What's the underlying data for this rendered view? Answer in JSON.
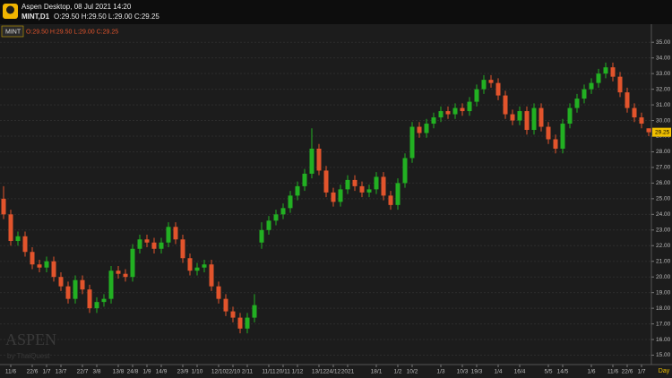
{
  "header": {
    "title": "Aspen Desktop, 08 Jul 2021 14:20",
    "symbol": "MINT,D1",
    "ohlc": "O:29.50 H:29.50 L:29.00 C:29.25"
  },
  "watermark": {
    "brand": "ASPEN",
    "by": "by ThaiQuest"
  },
  "chart_data": {
    "type": "candlestick",
    "legend_symbol": "MINT",
    "legend_ohlc": "O:29.50 H:29.50 L:29.00 C:29.25",
    "period": "Day",
    "up_color": "#22b022",
    "down_color": "#e2542c",
    "ylim": [
      14.4,
      36.1
    ],
    "yticks": [
      {
        "value": 15,
        "label": "15.00"
      },
      {
        "value": 16,
        "label": "16.00"
      },
      {
        "value": 17,
        "label": "17.00"
      },
      {
        "value": 18,
        "label": "18.00"
      },
      {
        "value": 19,
        "label": "19.00"
      },
      {
        "value": 20,
        "label": "20.00"
      },
      {
        "value": 21,
        "label": "21.00"
      },
      {
        "value": 22,
        "label": "22.00"
      },
      {
        "value": 23,
        "label": "23.00"
      },
      {
        "value": 24,
        "label": "24.00"
      },
      {
        "value": 25,
        "label": "25.00"
      },
      {
        "value": 26,
        "label": "26.00"
      },
      {
        "value": 27,
        "label": "27.00"
      },
      {
        "value": 28,
        "label": "28.00"
      },
      {
        "value": 29,
        "label": "29.00"
      },
      {
        "value": 30,
        "label": "30.00"
      },
      {
        "value": 31,
        "label": "31.00"
      },
      {
        "value": 32,
        "label": "32.00"
      },
      {
        "value": 33,
        "label": "33.00"
      },
      {
        "value": 34,
        "label": "34.00"
      },
      {
        "value": 35,
        "label": "35.00"
      }
    ],
    "grid": true,
    "current_price": {
      "value": 29.25,
      "label": "29.25"
    },
    "categories": [
      null,
      "11/6",
      null,
      null,
      "22/6",
      null,
      "1/7",
      null,
      "13/7",
      null,
      null,
      "22/7",
      null,
      "3/8",
      null,
      null,
      "13/8",
      null,
      "24/8",
      null,
      "1/9",
      null,
      "14/9",
      null,
      null,
      "23/9",
      null,
      "1/10",
      null,
      null,
      "12/10",
      null,
      "22/10",
      null,
      "2/11",
      null,
      null,
      "11/11",
      null,
      "20/11",
      null,
      "1/12",
      null,
      null,
      "13/12",
      null,
      "24/12",
      null,
      "2021",
      null,
      null,
      null,
      "18/1",
      null,
      null,
      "1/2",
      null,
      "10/2",
      null,
      null,
      null,
      "1/3",
      null,
      null,
      "10/3",
      null,
      "19/3",
      null,
      null,
      "1/4",
      null,
      null,
      "16/4",
      null,
      null,
      null,
      "5/5",
      null,
      "14/5",
      null,
      null,
      null,
      "1/6",
      null,
      null,
      "11/6",
      null,
      "22/6",
      null,
      "1/7",
      null
    ],
    "open": [
      25.0,
      24.0,
      22.3,
      22.6,
      21.6,
      20.8,
      20.6,
      21.0,
      20.0,
      19.4,
      18.6,
      19.8,
      19.2,
      18.0,
      18.4,
      18.6,
      20.4,
      20.2,
      20.0,
      21.8,
      22.4,
      22.2,
      21.8,
      22.2,
      23.2,
      22.4,
      21.2,
      20.4,
      20.6,
      20.8,
      19.4,
      18.6,
      17.8,
      17.4,
      16.7,
      17.4,
      22.2,
      23.0,
      23.6,
      24.0,
      24.4,
      25.2,
      25.8,
      26.6,
      28.2,
      26.8,
      25.4,
      24.8,
      25.6,
      26.2,
      25.8,
      25.4,
      25.6,
      26.4,
      25.2,
      24.6,
      26.0,
      27.6,
      29.6,
      29.2,
      29.8,
      30.2,
      30.6,
      30.4,
      30.8,
      30.6,
      31.2,
      32.0,
      32.6,
      32.4,
      31.6,
      30.4,
      30.0,
      30.6,
      29.4,
      30.8,
      29.6,
      28.8,
      28.2,
      29.8,
      30.8,
      31.4,
      32.0,
      32.4,
      33.0,
      33.4,
      32.8,
      31.8,
      30.8,
      30.2,
      29.5
    ],
    "high": [
      25.8,
      24.3,
      22.9,
      22.9,
      21.9,
      21.1,
      21.3,
      21.3,
      20.3,
      19.7,
      20.1,
      20.1,
      19.5,
      18.7,
      18.9,
      20.7,
      20.7,
      20.5,
      22.1,
      22.7,
      22.7,
      22.5,
      22.5,
      23.5,
      23.5,
      22.7,
      21.5,
      20.9,
      21.1,
      21.1,
      19.7,
      18.9,
      18.1,
      17.7,
      17.7,
      18.9,
      23.5,
      23.9,
      24.3,
      24.7,
      25.5,
      26.1,
      26.9,
      29.5,
      28.5,
      27.1,
      25.7,
      25.9,
      26.5,
      26.5,
      26.1,
      25.9,
      26.7,
      26.7,
      25.5,
      26.3,
      27.9,
      29.9,
      29.9,
      30.1,
      30.5,
      30.9,
      30.9,
      31.1,
      31.1,
      31.5,
      32.3,
      32.9,
      32.9,
      32.7,
      31.9,
      30.7,
      30.9,
      30.9,
      31.1,
      31.1,
      29.9,
      29.1,
      30.1,
      31.1,
      31.7,
      32.3,
      32.7,
      33.3,
      33.7,
      33.7,
      33.1,
      32.1,
      31.1,
      30.5,
      29.5
    ],
    "low": [
      23.7,
      22.0,
      22.0,
      21.3,
      20.5,
      20.3,
      20.3,
      19.7,
      19.1,
      18.3,
      18.3,
      18.9,
      17.7,
      17.7,
      18.1,
      18.3,
      19.9,
      19.7,
      19.7,
      21.5,
      21.9,
      21.5,
      21.5,
      21.9,
      22.1,
      20.9,
      20.1,
      20.1,
      20.3,
      19.1,
      18.3,
      17.5,
      17.1,
      16.4,
      16.4,
      17.1,
      21.8,
      22.7,
      23.3,
      23.7,
      24.1,
      24.9,
      25.5,
      26.3,
      26.5,
      25.1,
      24.5,
      24.5,
      25.3,
      25.5,
      25.1,
      25.1,
      25.3,
      24.9,
      24.3,
      24.3,
      25.7,
      27.3,
      28.9,
      28.9,
      29.5,
      29.9,
      30.1,
      30.1,
      30.3,
      30.3,
      30.9,
      31.7,
      32.1,
      31.3,
      30.1,
      29.7,
      29.7,
      29.1,
      29.1,
      29.3,
      28.5,
      27.9,
      27.9,
      29.5,
      30.5,
      31.1,
      31.7,
      32.1,
      32.7,
      32.5,
      31.5,
      30.5,
      29.9,
      29.5,
      29.0
    ],
    "close": [
      24.0,
      22.3,
      22.6,
      21.6,
      20.8,
      20.6,
      21.0,
      20.0,
      19.4,
      18.6,
      19.8,
      19.2,
      18.0,
      18.4,
      18.6,
      20.4,
      20.2,
      20.0,
      21.8,
      22.4,
      22.2,
      21.8,
      22.2,
      23.2,
      22.4,
      21.2,
      20.4,
      20.6,
      20.8,
      19.4,
      18.6,
      17.8,
      17.4,
      16.7,
      17.4,
      18.2,
      23.0,
      23.6,
      24.0,
      24.4,
      25.2,
      25.8,
      26.6,
      28.2,
      26.8,
      25.4,
      24.8,
      25.6,
      26.2,
      25.8,
      25.4,
      25.6,
      26.4,
      25.2,
      24.6,
      26.0,
      27.6,
      29.6,
      29.2,
      29.8,
      30.2,
      30.6,
      30.4,
      30.8,
      30.6,
      31.2,
      32.0,
      32.6,
      32.4,
      31.6,
      30.4,
      30.0,
      30.6,
      29.4,
      30.8,
      29.6,
      28.8,
      28.2,
      29.8,
      30.8,
      31.4,
      32.0,
      32.4,
      33.0,
      33.4,
      32.8,
      31.8,
      30.8,
      30.2,
      29.8,
      29.25
    ]
  }
}
